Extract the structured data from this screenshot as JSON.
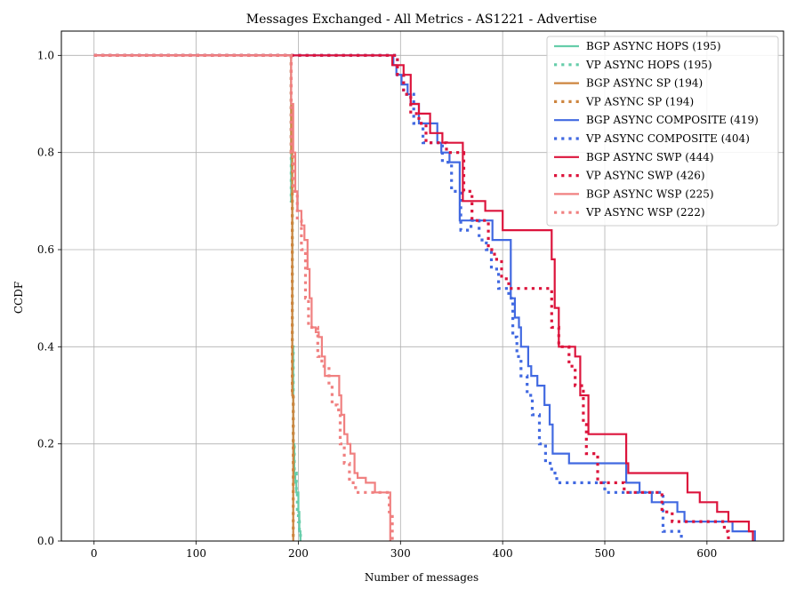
{
  "chart_data": {
    "type": "line",
    "step": true,
    "title": "Messages Exchanged - All Metrics - AS1221 - Advertise",
    "xlabel": "Number of messages",
    "ylabel": "CCDF",
    "xlim": [
      -32,
      675
    ],
    "ylim": [
      0.0,
      1.05
    ],
    "xticks": [
      0,
      100,
      200,
      300,
      400,
      500,
      600
    ],
    "yticks": [
      "0.0",
      "0.2",
      "0.4",
      "0.6",
      "0.8",
      "1.0"
    ],
    "grid": true,
    "legend_position": "top-right",
    "series": [
      {
        "name": "BGP ASYNC HOPS (195)",
        "color": "#66cdaa",
        "style": "solid",
        "x": [
          0,
          192,
          193,
          194,
          195,
          196,
          197,
          198,
          199,
          200,
          201,
          202
        ],
        "y": [
          1.0,
          1.0,
          0.7,
          0.4,
          0.2,
          0.14,
          0.12,
          0.1,
          0.1,
          0.06,
          0.02,
          0.0
        ]
      },
      {
        "name": "VP ASYNC HOPS (195)",
        "color": "#66cdaa",
        "style": "dotted",
        "x": [
          0,
          192,
          193,
          194,
          195,
          196,
          198,
          199,
          200,
          201,
          202
        ],
        "y": [
          1.0,
          1.0,
          0.7,
          0.4,
          0.2,
          0.14,
          0.1,
          0.06,
          0.04,
          0.02,
          0.0
        ]
      },
      {
        "name": "BGP ASYNC SP (194)",
        "color": "#cd853f",
        "style": "solid",
        "x": [
          0,
          192,
          193,
          194,
          195
        ],
        "y": [
          1.0,
          1.0,
          0.8,
          0.3,
          0.0
        ]
      },
      {
        "name": "VP ASYNC SP (194)",
        "color": "#cd853f",
        "style": "dotted",
        "x": [
          0,
          192,
          193,
          194,
          195
        ],
        "y": [
          1.0,
          1.0,
          0.8,
          0.3,
          0.0
        ]
      },
      {
        "name": "BGP ASYNC COMPOSITE (419)",
        "color": "#4169e1",
        "style": "solid",
        "x": [
          0,
          287,
          293,
          296,
          301,
          307,
          310,
          318,
          322,
          336,
          340,
          348,
          358,
          362,
          390,
          402,
          408,
          412,
          416,
          418,
          425,
          428,
          434,
          441,
          446,
          449,
          452,
          457,
          465,
          502,
          521,
          534,
          546,
          556,
          571,
          578,
          625,
          647
        ],
        "y": [
          1.0,
          1.0,
          0.98,
          0.96,
          0.94,
          0.92,
          0.9,
          0.86,
          0.86,
          0.82,
          0.8,
          0.78,
          0.66,
          0.66,
          0.62,
          0.62,
          0.5,
          0.46,
          0.44,
          0.4,
          0.36,
          0.34,
          0.32,
          0.28,
          0.24,
          0.18,
          0.18,
          0.18,
          0.16,
          0.16,
          0.12,
          0.1,
          0.08,
          0.08,
          0.06,
          0.04,
          0.02,
          0.0
        ]
      },
      {
        "name": "VP ASYNC COMPOSITE (404)",
        "color": "#4169e1",
        "style": "dotted",
        "x": [
          0,
          292,
          297,
          303,
          313,
          322,
          341,
          350,
          359,
          369,
          377,
          384,
          389,
          396,
          406,
          410,
          414,
          418,
          424,
          429,
          436,
          442,
          448,
          453,
          464,
          500,
          557,
          575
        ],
        "y": [
          1.0,
          1.0,
          0.96,
          0.92,
          0.86,
          0.82,
          0.78,
          0.72,
          0.64,
          0.66,
          0.62,
          0.6,
          0.56,
          0.52,
          0.5,
          0.42,
          0.38,
          0.34,
          0.3,
          0.26,
          0.2,
          0.16,
          0.14,
          0.12,
          0.12,
          0.1,
          0.02,
          0.0
        ]
      },
      {
        "name": "BGP ASYNC SWP (444)",
        "color": "#dc143c",
        "style": "solid",
        "x": [
          0,
          287,
          292,
          303,
          310,
          318,
          329,
          336,
          341,
          356,
          361,
          378,
          383,
          394,
          400,
          420,
          448,
          451,
          455,
          471,
          476,
          484,
          508,
          521,
          523,
          534,
          581,
          593,
          610,
          621,
          628,
          641,
          645
        ],
        "y": [
          1.0,
          1.0,
          0.98,
          0.96,
          0.9,
          0.88,
          0.84,
          0.84,
          0.82,
          0.82,
          0.7,
          0.7,
          0.68,
          0.68,
          0.64,
          0.64,
          0.58,
          0.48,
          0.4,
          0.38,
          0.3,
          0.22,
          0.22,
          0.16,
          0.14,
          0.14,
          0.1,
          0.08,
          0.06,
          0.04,
          0.04,
          0.02,
          0.0
        ]
      },
      {
        "name": "VP ASYNC SWP (426)",
        "color": "#dc143c",
        "style": "dotted",
        "x": [
          0,
          287,
          297,
          303,
          310,
          318,
          325,
          337,
          345,
          362,
          370,
          376,
          386,
          392,
          399,
          406,
          413,
          433,
          448,
          455,
          465,
          471,
          479,
          482,
          493,
          512,
          519,
          536,
          556,
          566,
          578,
          617,
          621
        ],
        "y": [
          1.0,
          1.0,
          0.96,
          0.92,
          0.88,
          0.86,
          0.82,
          0.82,
          0.8,
          0.72,
          0.66,
          0.66,
          0.6,
          0.58,
          0.54,
          0.52,
          0.52,
          0.52,
          0.44,
          0.4,
          0.36,
          0.32,
          0.24,
          0.18,
          0.12,
          0.12,
          0.1,
          0.1,
          0.06,
          0.04,
          0.04,
          0.02,
          0.0
        ]
      },
      {
        "name": "BGP ASYNC WSP (225)",
        "color": "#f08080",
        "style": "solid",
        "x": [
          0,
          192,
          193,
          195,
          197,
          199,
          203,
          206,
          209,
          211,
          213,
          217,
          220,
          223,
          226,
          238,
          240,
          242,
          245,
          248,
          251,
          255,
          258,
          266,
          275,
          283,
          287,
          290
        ],
        "y": [
          1.0,
          1.0,
          0.9,
          0.8,
          0.72,
          0.68,
          0.65,
          0.62,
          0.56,
          0.5,
          0.44,
          0.43,
          0.42,
          0.38,
          0.34,
          0.34,
          0.3,
          0.26,
          0.22,
          0.2,
          0.18,
          0.14,
          0.13,
          0.12,
          0.1,
          0.1,
          0.1,
          0.0
        ]
      },
      {
        "name": "VP ASYNC WSP (222)",
        "color": "#f08080",
        "style": "dotted",
        "x": [
          0,
          192,
          193,
          195,
          199,
          203,
          207,
          210,
          214,
          219,
          223,
          230,
          233,
          238,
          241,
          245,
          250,
          256,
          262,
          285,
          289,
          292
        ],
        "y": [
          1.0,
          1.0,
          0.8,
          0.72,
          0.66,
          0.6,
          0.5,
          0.44,
          0.44,
          0.38,
          0.36,
          0.32,
          0.28,
          0.27,
          0.2,
          0.16,
          0.12,
          0.1,
          0.1,
          0.1,
          0.06,
          0.0
        ]
      }
    ]
  }
}
